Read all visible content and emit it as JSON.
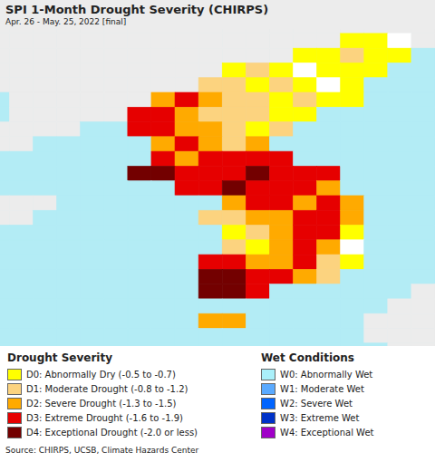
{
  "chart_data": {
    "type": "map",
    "title": "SPI 1-Month Drought Severity (CHIRPS)",
    "subtitle": "Apr. 26 - May. 25, 2022 [final]",
    "source": "Source: CHIRPS, UCSB, Climate Hazards Center",
    "tick_labels": false,
    "xlim": [
      121.8,
      131.0
    ],
    "ylim": [
      32.4,
      43.15
    ],
    "cell_size": 0.5,
    "sea_color": "#b3ecf5",
    "land_classes": [
      {
        "code": -1,
        "color": "#ececec"
      },
      {
        "code": 0,
        "color": "#ffffff"
      }
    ],
    "drought_classes": {
      "title": "Drought Severity",
      "items": [
        {
          "code": 1,
          "label": "D0: Abnormally Dry (-0.5 to -0.7)",
          "color": "#ffff00"
        },
        {
          "code": 2,
          "label": "D1: Moderate Drought (-0.8 to -1.2)",
          "color": "#fcd37f"
        },
        {
          "code": 3,
          "label": "D2: Severe Drought (-1.3 to -1.5)",
          "color": "#ffaa00"
        },
        {
          "code": 4,
          "label": "D3: Extreme Drought (-1.6 to -1.9)",
          "color": "#e60000"
        },
        {
          "code": 5,
          "label": "D4: Exceptional Drought (-2.0 or less)",
          "color": "#730000"
        }
      ]
    },
    "wet_classes": {
      "title": "Wet Conditions",
      "items": [
        {
          "code": 6,
          "label": "W0: Abnormally Wet",
          "color": "#aaf0fa"
        },
        {
          "code": 7,
          "label": "W1: Moderate Wet",
          "color": "#5aaaff"
        },
        {
          "code": 8,
          "label": "W2: Severe Wet",
          "color": "#0064ff"
        },
        {
          "code": 9,
          "label": "W3: Extreme Wet",
          "color": "#0032c8"
        },
        {
          "code": 10,
          "label": "W4: Exceptional Wet",
          "color": "#a000c8"
        }
      ]
    },
    "lon": [
      121.5,
      122,
      122.5,
      123,
      123.5,
      124,
      124.5,
      125,
      125.5,
      126,
      126.5,
      127,
      127.5,
      128,
      128.5,
      129,
      129.5,
      130,
      130.5
    ],
    "lat": [
      43,
      42.5,
      42,
      41.5,
      41,
      40.5,
      40,
      39.5,
      39,
      38.5,
      38,
      37.5,
      37,
      36.5,
      36,
      35.5,
      35,
      34.5,
      34,
      33.5,
      33,
      32.5,
      32
    ],
    "cells": [
      [
        -1,
        -1,
        -1,
        -1,
        -1,
        -1,
        -1,
        -1,
        -1,
        -1,
        -1,
        -1,
        -1,
        -1,
        -1,
        -1,
        -1,
        -1,
        -1
      ],
      [
        -1,
        -1,
        -1,
        -1,
        -1,
        -1,
        -1,
        -1,
        -1,
        -1,
        -1,
        -1,
        -1,
        -1,
        -1,
        1,
        1,
        0,
        -1
      ],
      [
        -1,
        -1,
        -1,
        -1,
        -1,
        -1,
        -1,
        -1,
        -1,
        -1,
        -1,
        -1,
        -1,
        1,
        1,
        2,
        1,
        1,
        null
      ],
      [
        -1,
        -1,
        -1,
        -1,
        -1,
        -1,
        -1,
        -1,
        -1,
        -1,
        1,
        2,
        1,
        0,
        1,
        1,
        1,
        null,
        null
      ],
      [
        -1,
        -1,
        -1,
        -1,
        -1,
        -1,
        -1,
        -1,
        -1,
        2,
        2,
        1,
        2,
        1,
        0,
        1,
        null,
        null,
        null
      ],
      [
        null,
        -1,
        -1,
        -1,
        -1,
        -1,
        -1,
        3,
        4,
        3,
        2,
        2,
        1,
        2,
        1,
        1,
        null,
        null,
        null
      ],
      [
        null,
        -1,
        -1,
        -1,
        -1,
        -1,
        4,
        4,
        3,
        2,
        2,
        2,
        1,
        1,
        null,
        null,
        null,
        null,
        null
      ],
      [
        -1,
        -1,
        -1,
        -1,
        null,
        null,
        4,
        4,
        3,
        3,
        2,
        1,
        2,
        null,
        null,
        null,
        null,
        null,
        null
      ],
      [
        -1,
        -1,
        null,
        null,
        null,
        null,
        null,
        3,
        4,
        3,
        2,
        3,
        null,
        null,
        null,
        null,
        null,
        null,
        null
      ],
      [
        null,
        null,
        null,
        null,
        null,
        null,
        null,
        4,
        3,
        4,
        4,
        4,
        4,
        null,
        null,
        null,
        null,
        null,
        null
      ],
      [
        null,
        null,
        null,
        null,
        null,
        null,
        5,
        5,
        4,
        4,
        4,
        5,
        4,
        4,
        4,
        null,
        null,
        null,
        null
      ],
      [
        null,
        null,
        null,
        null,
        null,
        null,
        null,
        null,
        4,
        4,
        5,
        4,
        4,
        4,
        3,
        null,
        null,
        null,
        null
      ],
      [
        -1,
        -1,
        -1,
        null,
        null,
        null,
        null,
        null,
        null,
        null,
        3,
        4,
        4,
        3,
        4,
        3,
        null,
        null,
        null
      ],
      [
        -1,
        -1,
        null,
        null,
        null,
        null,
        null,
        null,
        null,
        2,
        2,
        3,
        3,
        4,
        4,
        3,
        null,
        null,
        null
      ],
      [
        null,
        null,
        null,
        null,
        null,
        null,
        null,
        null,
        null,
        null,
        1,
        2,
        3,
        4,
        4,
        1,
        null,
        null,
        null
      ],
      [
        null,
        null,
        null,
        null,
        null,
        null,
        null,
        null,
        null,
        null,
        2,
        1,
        3,
        4,
        3,
        0,
        null,
        null,
        null
      ],
      [
        null,
        null,
        null,
        null,
        null,
        null,
        null,
        null,
        null,
        4,
        4,
        3,
        3,
        4,
        2,
        1,
        null,
        null,
        null
      ],
      [
        null,
        null,
        null,
        null,
        null,
        null,
        null,
        null,
        null,
        5,
        5,
        4,
        4,
        3,
        2,
        null,
        null,
        null,
        null
      ],
      [
        null,
        null,
        null,
        null,
        null,
        null,
        null,
        null,
        null,
        5,
        5,
        4,
        null,
        null,
        null,
        null,
        null,
        null,
        -1
      ],
      [
        null,
        null,
        null,
        null,
        null,
        null,
        null,
        null,
        null,
        null,
        null,
        null,
        null,
        null,
        null,
        null,
        null,
        -1,
        -1
      ],
      [
        null,
        null,
        null,
        null,
        null,
        null,
        null,
        null,
        null,
        3,
        3,
        null,
        null,
        null,
        null,
        null,
        -1,
        -1,
        -1
      ],
      [
        null,
        null,
        null,
        null,
        null,
        null,
        null,
        null,
        null,
        null,
        null,
        null,
        null,
        null,
        null,
        null,
        -1,
        -1,
        -1
      ],
      [
        null,
        null,
        null,
        null,
        null,
        null,
        null,
        null,
        null,
        null,
        null,
        null,
        null,
        null,
        null,
        null,
        null,
        -1,
        -1
      ]
    ]
  }
}
